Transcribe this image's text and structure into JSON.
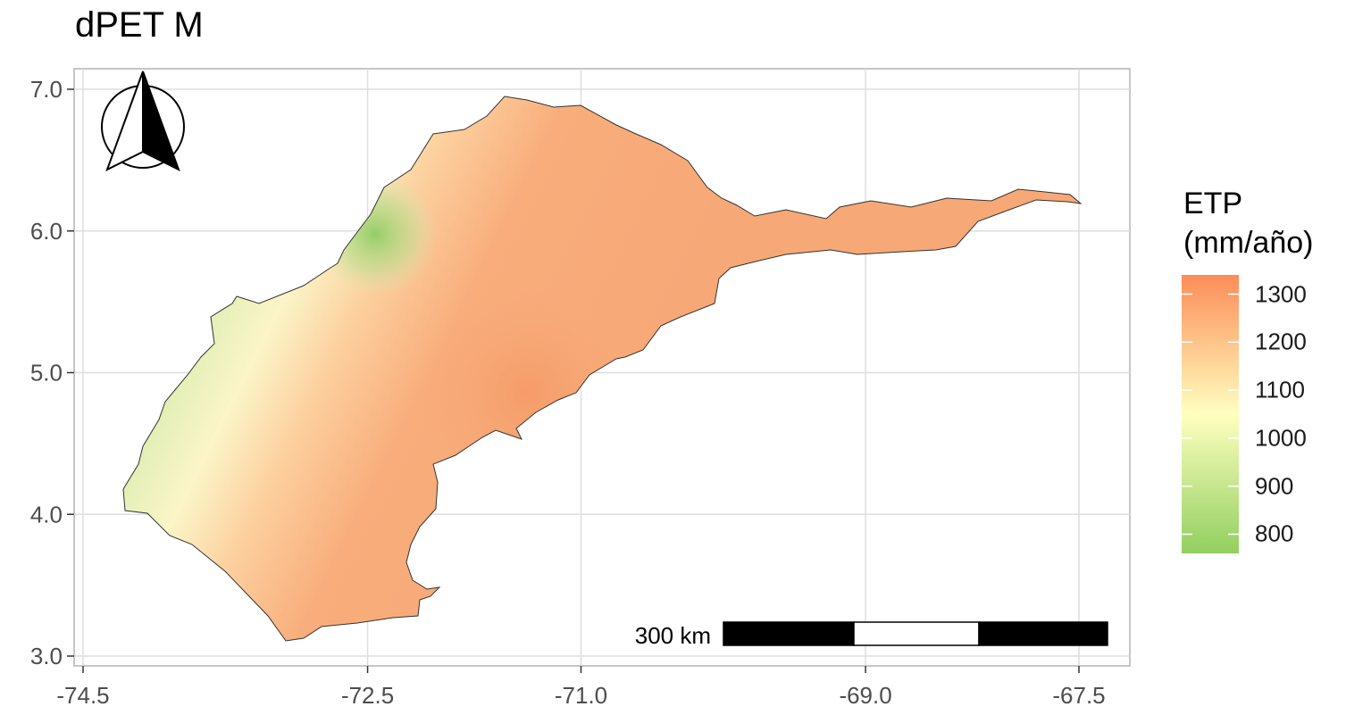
{
  "title": "dPET M",
  "legend": {
    "title_line1": "ETP",
    "title_line2": "(mm/año)",
    "breaks": [
      "1300",
      "1200",
      "1100",
      "1000",
      "900",
      "800"
    ],
    "color_low": "#91cf60",
    "color_mid": "#ffffbf",
    "color_high": "#fc8d59"
  },
  "scale_bar": {
    "label": "300 km"
  },
  "north_arrow": {
    "icon": "north-arrow-icon"
  },
  "chart_data": {
    "type": "heatmap",
    "title": "dPET M",
    "legend_title": "ETP (mm/año)",
    "x_ticks": [
      "-74.5",
      "-72.5",
      "-71.0",
      "-69.0",
      "-67.5"
    ],
    "y_ticks": [
      "3.0",
      "4.0",
      "5.0",
      "6.0",
      "7.0"
    ],
    "xlim": [
      -74.6,
      -67.2
    ],
    "ylim": [
      3.0,
      7.1
    ],
    "value_range": [
      760,
      1340
    ],
    "legend_breaks": [
      800,
      900,
      1000,
      1100,
      1200,
      1300
    ],
    "grid": true
  }
}
